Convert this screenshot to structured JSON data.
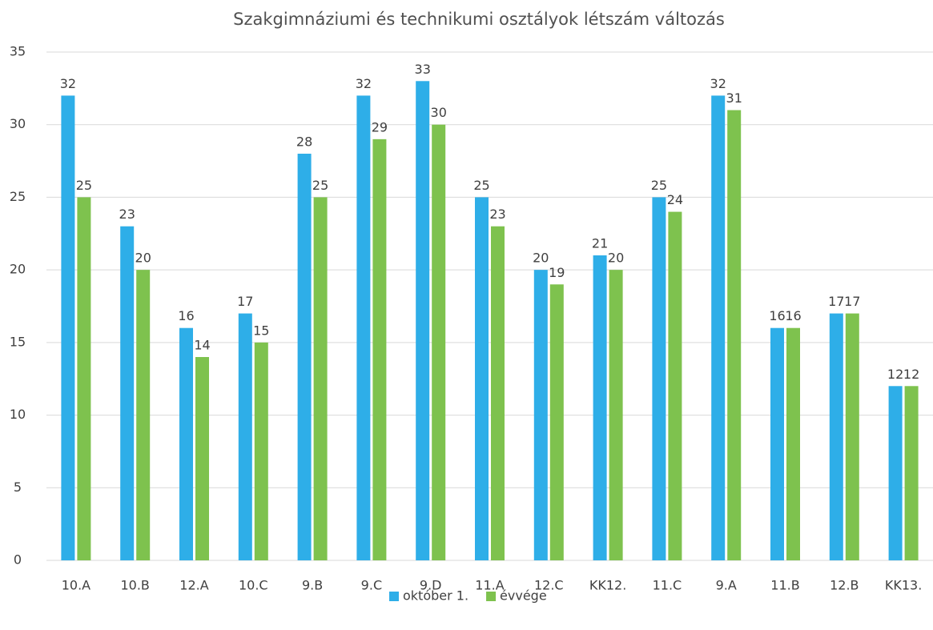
{
  "chart_data": {
    "type": "bar",
    "title": "Szakgimnáziumi  és technikumi  osztályok létszám változás",
    "categories": [
      "10.A",
      "10.B",
      "12.A",
      "10.C",
      "9.B",
      "9.C",
      "9.D",
      "11.A",
      "12.C",
      "KK12.",
      "11.C",
      "9.A",
      "11.B",
      "12.B",
      "KK13."
    ],
    "series": [
      {
        "name": "október 1.",
        "color": "#2eaee8",
        "values": [
          32,
          23,
          16,
          17,
          28,
          32,
          33,
          25,
          20,
          21,
          25,
          32,
          16,
          17,
          12
        ]
      },
      {
        "name": "évvége",
        "color": "#7ec24e",
        "values": [
          25,
          20,
          14,
          15,
          25,
          29,
          30,
          23,
          19,
          20,
          24,
          31,
          16,
          17,
          12
        ]
      }
    ],
    "ylim": [
      0,
      35
    ],
    "yticks": [
      0,
      5,
      10,
      15,
      20,
      25,
      30,
      35
    ],
    "grid": true,
    "legend": "bottom"
  }
}
